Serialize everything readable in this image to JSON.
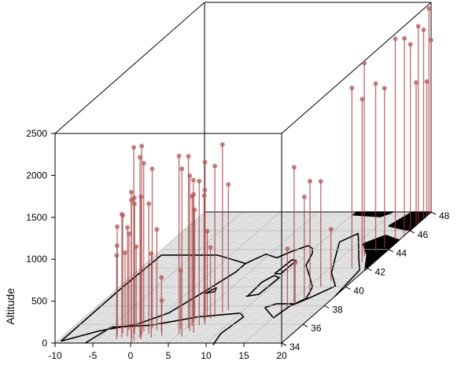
{
  "chart_data": {
    "type": "scatter3d",
    "title": "",
    "xlabel": "",
    "ylabel": "",
    "zlabel": "Altitude",
    "xlim": [
      -10,
      20
    ],
    "ylim": [
      34,
      48
    ],
    "zlim": [
      0,
      2500
    ],
    "x_ticks": [
      "-10",
      "-5",
      "0",
      "5",
      "10",
      "15",
      "20"
    ],
    "y_ticks": [
      "34",
      "36",
      "38",
      "40",
      "42",
      "44",
      "46",
      "48"
    ],
    "z_ticks": [
      "0",
      "500",
      "1000",
      "1500",
      "2000",
      "2500"
    ],
    "grid": true,
    "base_map": "coastline-relief",
    "point_color": "#b05a5a",
    "stem_color": "#a33a3a",
    "points": [
      {
        "x": -2.0,
        "y": 34.6,
        "z": 1470
      },
      {
        "x": -2.6,
        "y": 35.1,
        "z": 1400
      },
      {
        "x": -2.9,
        "y": 34.8,
        "z": 1300
      },
      {
        "x": -2.2,
        "y": 35.4,
        "z": 1150
      },
      {
        "x": -3.2,
        "y": 35.0,
        "z": 1050
      },
      {
        "x": -2.4,
        "y": 34.4,
        "z": 1000
      },
      {
        "x": -1.8,
        "y": 35.8,
        "z": 950
      },
      {
        "x": -3.0,
        "y": 35.6,
        "z": 900
      },
      {
        "x": -1.4,
        "y": 34.7,
        "z": 1300
      },
      {
        "x": -1.2,
        "y": 35.2,
        "z": 1600
      },
      {
        "x": -0.6,
        "y": 34.5,
        "z": 1650
      },
      {
        "x": -0.9,
        "y": 35.0,
        "z": 1550
      },
      {
        "x": 0.0,
        "y": 34.3,
        "z": 2300
      },
      {
        "x": 0.2,
        "y": 34.9,
        "z": 2250
      },
      {
        "x": 0.4,
        "y": 34.6,
        "z": 2150
      },
      {
        "x": -0.1,
        "y": 35.3,
        "z": 2000
      },
      {
        "x": 0.6,
        "y": 35.6,
        "z": 1900
      },
      {
        "x": 0.1,
        "y": 34.0,
        "z": 1800
      },
      {
        "x": 0.8,
        "y": 34.4,
        "z": 1700
      },
      {
        "x": 1.0,
        "y": 35.0,
        "z": 1550
      },
      {
        "x": 1.5,
        "y": 35.4,
        "z": 1200
      },
      {
        "x": 1.9,
        "y": 34.6,
        "z": 1000
      },
      {
        "x": 2.4,
        "y": 35.2,
        "z": 650
      },
      {
        "x": 3.0,
        "y": 34.8,
        "z": 420
      },
      {
        "x": 5.0,
        "y": 35.0,
        "z": 2120
      },
      {
        "x": 5.4,
        "y": 35.6,
        "z": 2050
      },
      {
        "x": 5.8,
        "y": 34.7,
        "z": 2000
      },
      {
        "x": 6.0,
        "y": 35.3,
        "z": 1850
      },
      {
        "x": 6.4,
        "y": 35.9,
        "z": 1720
      },
      {
        "x": 6.8,
        "y": 35.1,
        "z": 1650
      },
      {
        "x": 5.2,
        "y": 36.2,
        "z": 1700
      },
      {
        "x": 5.6,
        "y": 35.8,
        "z": 1550
      },
      {
        "x": 6.2,
        "y": 36.5,
        "z": 1480
      },
      {
        "x": 7.0,
        "y": 36.0,
        "z": 1600
      },
      {
        "x": 7.2,
        "y": 36.8,
        "z": 1800
      },
      {
        "x": 6.6,
        "y": 36.3,
        "z": 1900
      },
      {
        "x": 7.5,
        "y": 37.3,
        "z": 2000
      },
      {
        "x": 4.8,
        "y": 36.6,
        "z": 1300
      },
      {
        "x": 5.9,
        "y": 37.0,
        "z": 1000
      },
      {
        "x": 6.9,
        "y": 36.6,
        "z": 850
      },
      {
        "x": 4.5,
        "y": 35.5,
        "z": 700
      },
      {
        "x": 8.0,
        "y": 37.5,
        "z": 1500
      },
      {
        "x": 16.0,
        "y": 38.0,
        "z": 1650
      },
      {
        "x": 16.4,
        "y": 39.2,
        "z": 1350
      },
      {
        "x": 16.5,
        "y": 38.6,
        "z": 1230
      },
      {
        "x": 16.7,
        "y": 40.0,
        "z": 1260
      },
      {
        "x": 15.4,
        "y": 37.8,
        "z": 700
      },
      {
        "x": 15.7,
        "y": 38.3,
        "z": 480
      },
      {
        "x": 17.2,
        "y": 40.6,
        "z": 620
      },
      {
        "x": 18.0,
        "y": 42.0,
        "z": 2150
      },
      {
        "x": 18.5,
        "y": 42.6,
        "z": 1950
      },
      {
        "x": 17.8,
        "y": 43.3,
        "z": 2300
      },
      {
        "x": 18.6,
        "y": 43.8,
        "z": 2000
      },
      {
        "x": 19.2,
        "y": 44.2,
        "z": 1900
      },
      {
        "x": 19.5,
        "y": 45.0,
        "z": 2400
      },
      {
        "x": 20.0,
        "y": 45.5,
        "z": 2350
      },
      {
        "x": 19.8,
        "y": 46.2,
        "z": 2200
      },
      {
        "x": 20.0,
        "y": 46.8,
        "z": 2350
      },
      {
        "x": 20.0,
        "y": 47.3,
        "z": 2250
      },
      {
        "x": 20.0,
        "y": 47.8,
        "z": 2450
      },
      {
        "x": 20.0,
        "y": 48.0,
        "z": 2050
      },
      {
        "x": 20.0,
        "y": 47.6,
        "z": 1600
      },
      {
        "x": 20.0,
        "y": 46.6,
        "z": 1700
      }
    ]
  }
}
